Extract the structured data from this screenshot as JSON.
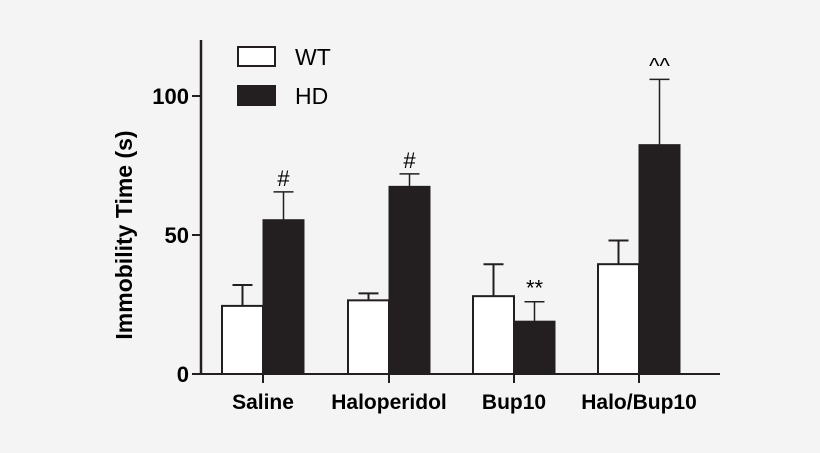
{
  "chart_data": {
    "type": "bar",
    "title": "",
    "xlabel": "",
    "ylabel": "Immobility Time (s)",
    "ylim": [
      0,
      120
    ],
    "yticks": [
      0,
      50,
      100
    ],
    "ytick_labels": [
      "0",
      "50",
      "100"
    ],
    "grid": false,
    "legend_position": "upper left",
    "categories": [
      "Saline",
      "Haloperidol",
      "Bup10",
      "Halo/Bup10"
    ],
    "series": [
      {
        "name": "WT",
        "color": "#ffffff",
        "values": [
          24.5,
          26.5,
          28,
          39.5
        ],
        "error": [
          7.5,
          2.5,
          11.5,
          8.5
        ]
      },
      {
        "name": "HD",
        "color": "#231f20",
        "values": [
          55.5,
          67.5,
          19,
          82.5
        ],
        "error": [
          10,
          4.5,
          7,
          23.5
        ]
      }
    ],
    "annotations": [
      {
        "category": "Saline",
        "series": "HD",
        "text": "#"
      },
      {
        "category": "Haloperidol",
        "series": "HD",
        "text": "#"
      },
      {
        "category": "Bup10",
        "series": "HD",
        "text": "**"
      },
      {
        "category": "Halo/Bup10",
        "series": "HD",
        "text": "^^"
      }
    ]
  }
}
